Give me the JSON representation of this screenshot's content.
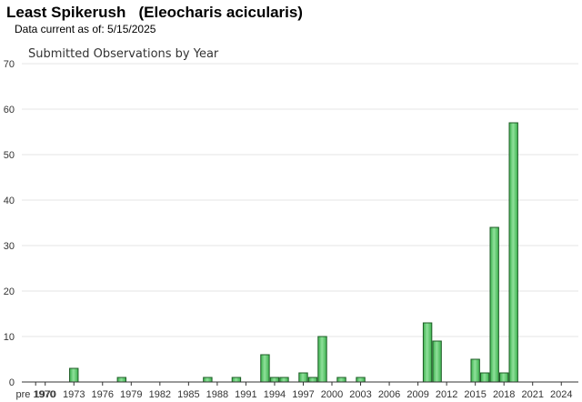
{
  "header": {
    "title": "Least Spikerush   (Eleocharis acicularis)",
    "date_line": "Data current as of: 5/15/2025"
  },
  "colors": {
    "bar_fill": "#3db34f",
    "bar_highlight": "#8fe09a",
    "bar_stroke": "#1e5c26",
    "grid": "#e6e6e6",
    "axis": "#333333"
  },
  "chart_data": {
    "type": "bar",
    "title": "Submitted Observations by Year",
    "xlabel": "",
    "ylabel": "",
    "ylim": [
      0,
      70
    ],
    "yticks": [
      0,
      10,
      20,
      30,
      40,
      50,
      60,
      70
    ],
    "grid": true,
    "legend": "none",
    "categories": [
      "pre 1970",
      "1970",
      "1971",
      "1972",
      "1973",
      "1974",
      "1975",
      "1976",
      "1977",
      "1978",
      "1979",
      "1980",
      "1981",
      "1982",
      "1983",
      "1984",
      "1985",
      "1986",
      "1987",
      "1988",
      "1989",
      "1990",
      "1991",
      "1992",
      "1993",
      "1994",
      "1995",
      "1996",
      "1997",
      "1998",
      "1999",
      "2000",
      "2001",
      "2002",
      "2003",
      "2004",
      "2005",
      "2006",
      "2007",
      "2008",
      "2009",
      "2010",
      "2011",
      "2012",
      "2013",
      "2014",
      "2015",
      "2016",
      "2017",
      "2018",
      "2019",
      "2020",
      "2021",
      "2022",
      "2023",
      "2024",
      "2025"
    ],
    "tick_labels": [
      "pre 1970",
      "1970",
      "1973",
      "1976",
      "1979",
      "1982",
      "1985",
      "1988",
      "1991",
      "1994",
      "1997",
      "2000",
      "2003",
      "2006",
      "2009",
      "2012",
      "2015",
      "2018",
      "2021",
      "2024"
    ],
    "values": [
      0,
      0,
      0,
      0,
      3,
      0,
      0,
      0,
      0,
      1,
      0,
      0,
      0,
      0,
      0,
      0,
      0,
      0,
      1,
      0,
      0,
      1,
      0,
      0,
      6,
      1,
      1,
      0,
      2,
      1,
      10,
      0,
      1,
      0,
      1,
      0,
      0,
      0,
      0,
      0,
      0,
      13,
      9,
      0,
      0,
      0,
      5,
      2,
      34,
      2,
      57,
      0,
      0,
      0,
      0,
      0,
      0
    ]
  }
}
